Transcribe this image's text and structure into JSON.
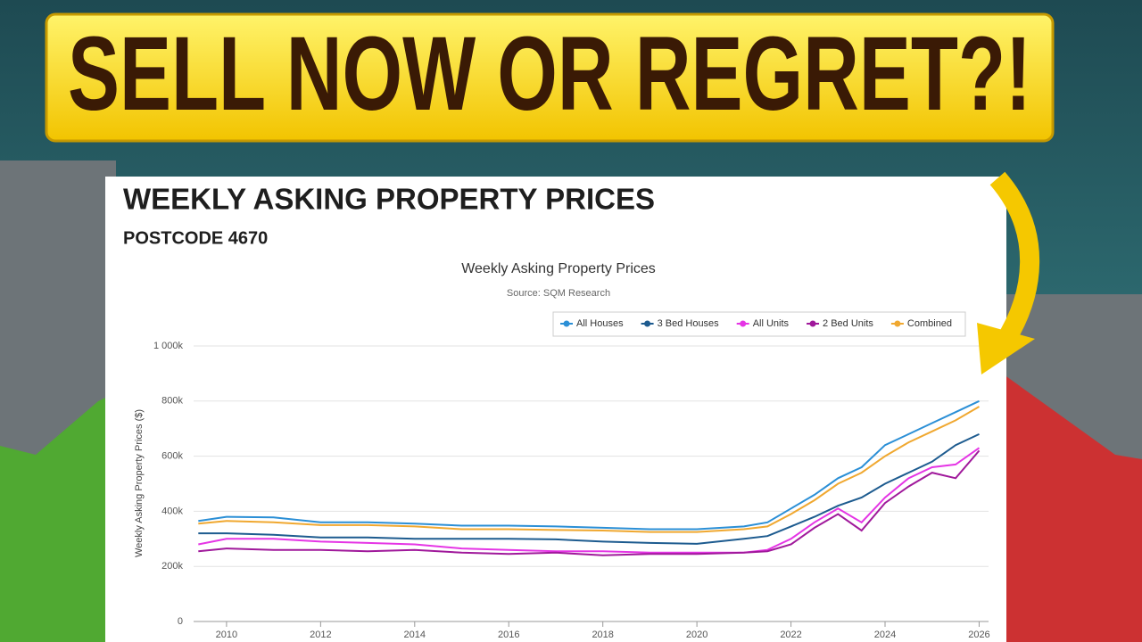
{
  "banner": {
    "text": "SELL NOW OR REGRET?!"
  },
  "panel": {
    "title": "WEEKLY ASKING PROPERTY PRICES",
    "subtitle": "POSTCODE 4670"
  },
  "chart_data": {
    "type": "line",
    "title": "Weekly Asking Property Prices",
    "subtitle": "Source: SQM Research",
    "y_label": "Weekly Asking Property Prices ($)",
    "x": [
      2009.4,
      2010,
      2011,
      2012,
      2013,
      2014,
      2015,
      2016,
      2017,
      2018,
      2019,
      2020,
      2021,
      2021.5,
      2022,
      2022.5,
      2023,
      2023.5,
      2024,
      2024.5,
      2025,
      2025.5,
      2026
    ],
    "series": [
      {
        "name": "All Houses",
        "color": "#2b8fd6",
        "values": [
          365000,
          380000,
          378000,
          360000,
          360000,
          355000,
          348000,
          348000,
          345000,
          340000,
          335000,
          335000,
          345000,
          360000,
          410000,
          460000,
          520000,
          560000,
          640000,
          680000,
          720000,
          760000,
          800000
        ]
      },
      {
        "name": "3 Bed Houses",
        "color": "#1d5b8f",
        "values": [
          320000,
          320000,
          315000,
          305000,
          305000,
          300000,
          300000,
          300000,
          298000,
          290000,
          285000,
          282000,
          300000,
          310000,
          345000,
          380000,
          420000,
          450000,
          500000,
          540000,
          580000,
          640000,
          680000
        ]
      },
      {
        "name": "All Units",
        "color": "#e535e5",
        "values": [
          280000,
          300000,
          300000,
          290000,
          285000,
          280000,
          265000,
          260000,
          255000,
          255000,
          250000,
          250000,
          250000,
          260000,
          300000,
          360000,
          410000,
          360000,
          450000,
          520000,
          560000,
          570000,
          630000
        ]
      },
      {
        "name": "2 Bed Units",
        "color": "#a0199b",
        "values": [
          255000,
          265000,
          260000,
          260000,
          255000,
          260000,
          250000,
          245000,
          250000,
          240000,
          245000,
          245000,
          250000,
          255000,
          280000,
          340000,
          390000,
          330000,
          430000,
          490000,
          540000,
          520000,
          620000
        ]
      },
      {
        "name": "Combined",
        "color": "#f0a830",
        "values": [
          355000,
          365000,
          360000,
          350000,
          350000,
          345000,
          335000,
          335000,
          332000,
          330000,
          325000,
          325000,
          335000,
          345000,
          390000,
          440000,
          500000,
          540000,
          600000,
          650000,
          690000,
          730000,
          780000
        ]
      }
    ],
    "xlim": [
      2009.3,
      2026.2
    ],
    "ylim": [
      0,
      1000000
    ],
    "xticks": [
      2010,
      2012,
      2014,
      2016,
      2018,
      2020,
      2022,
      2024,
      2026
    ],
    "yticks": [
      0,
      {
        "value": 200000,
        "label": "200k"
      },
      {
        "value": 400000,
        "label": "400k"
      },
      {
        "value": 600000,
        "label": "600k"
      },
      {
        "value": 800000,
        "label": "800k"
      },
      {
        "value": 1000000,
        "label": "1 000k"
      }
    ],
    "grid": true,
    "legend": "top-right"
  }
}
